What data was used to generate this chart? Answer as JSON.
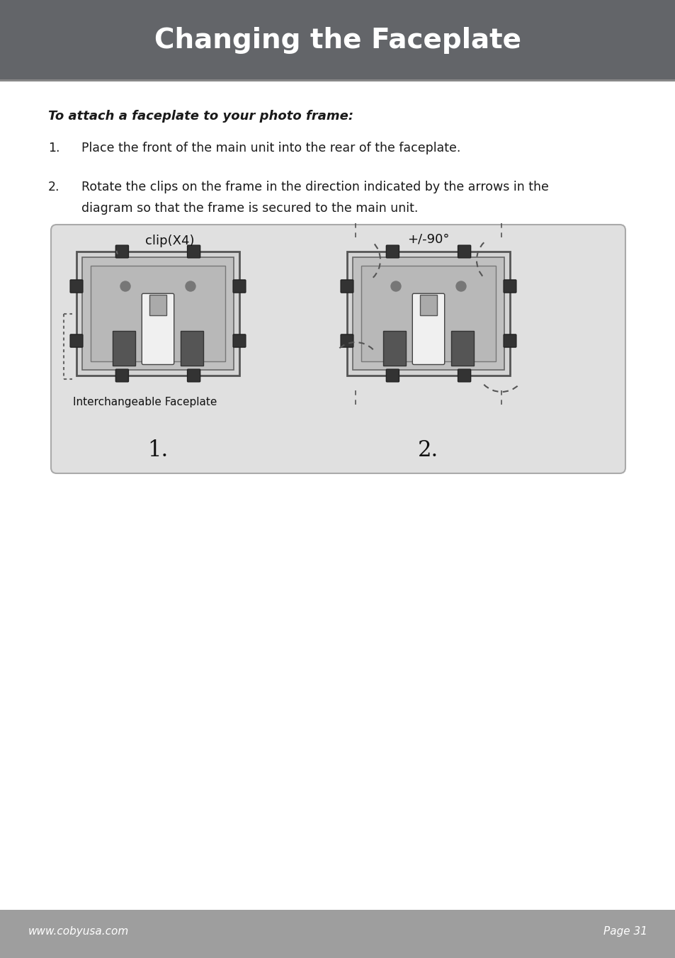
{
  "title": "Changing the Faceplate",
  "title_bg_color": "#636569",
  "title_text_color": "#ffffff",
  "title_fontsize": 28,
  "body_bg_color": "#ffffff",
  "heading_text": "To attach a faceplate to your photo frame:",
  "step1_num": "1.",
  "step1_text": "Place the front of the main unit into the rear of the faceplate.",
  "step2_num": "2.",
  "step2_line1": "Rotate the clips on the frame in the direction indicated by the arrows in the",
  "step2_line2": "diagram so that the frame is secured to the main unit.",
  "footer_bg_color": "#9e9e9e",
  "footer_left": "www.cobyusa.com",
  "footer_right": "Page 31",
  "footer_text_color": "#ffffff",
  "diagram_bg": "#e0e0e0",
  "diagram_border": "#999999",
  "clip_label": "clip(X4)",
  "faceplate_label": "Interchangeable Faceplate",
  "angle_label": "+/-90°",
  "step_label_1": "1.",
  "step_label_2": "2.",
  "text_color": "#333333"
}
